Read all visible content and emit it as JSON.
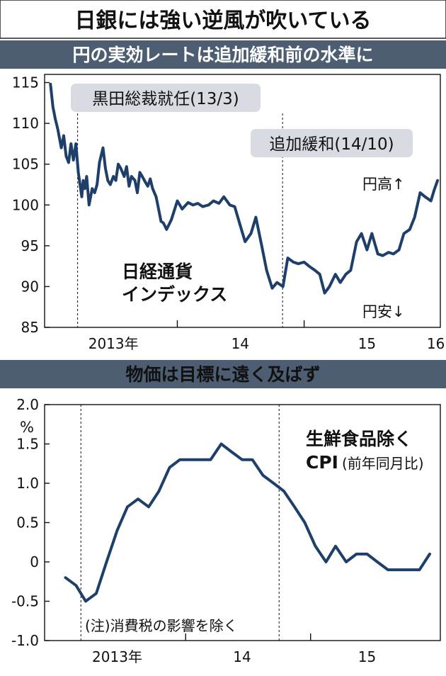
{
  "title": "日銀には強い逆風が吹いている",
  "colors": {
    "line": "#1f3f6b",
    "header_band": "#4d5e72",
    "callout": "#d8dce2",
    "ink": "#111111"
  },
  "chart_data": [
    {
      "type": "line",
      "section_title": "円の実効レートは追加緩和前の水準に",
      "series": [
        {
          "name": "日経通貨インデックス",
          "x": [
            "2013-01-01",
            "2013-01-08",
            "2013-01-15",
            "2013-01-22",
            "2013-02-01",
            "2013-02-08",
            "2013-02-15",
            "2013-02-22",
            "2013-03-01",
            "2013-03-08",
            "2013-03-15",
            "2013-03-22",
            "2013-04-01",
            "2013-04-05",
            "2013-04-10",
            "2013-04-15",
            "2013-04-22",
            "2013-05-01",
            "2013-05-08",
            "2013-05-15",
            "2013-05-22",
            "2013-06-01",
            "2013-06-08",
            "2013-06-15",
            "2013-06-22",
            "2013-07-01",
            "2013-07-08",
            "2013-07-15",
            "2013-07-22",
            "2013-08-01",
            "2013-08-08",
            "2013-08-15",
            "2013-08-22",
            "2013-09-01",
            "2013-09-08",
            "2013-09-15",
            "2013-09-22",
            "2013-10-01",
            "2013-10-08",
            "2013-10-15",
            "2013-10-22",
            "2013-11-01",
            "2013-11-08",
            "2013-11-15",
            "2013-11-22",
            "2013-12-01",
            "2013-12-15",
            "2014-01-01",
            "2014-01-15",
            "2014-02-01",
            "2014-02-15",
            "2014-03-01",
            "2014-03-15",
            "2014-04-01",
            "2014-04-15",
            "2014-05-01",
            "2014-05-15",
            "2014-06-01",
            "2014-06-15",
            "2014-07-01",
            "2014-07-15",
            "2014-08-01",
            "2014-08-15",
            "2014-09-01",
            "2014-09-15",
            "2014-10-01",
            "2014-10-15",
            "2014-11-01",
            "2014-11-15",
            "2014-12-01",
            "2014-12-15",
            "2015-01-01",
            "2015-01-15",
            "2015-02-01",
            "2015-02-15",
            "2015-03-01",
            "2015-03-15",
            "2015-04-01",
            "2015-04-15",
            "2015-05-01",
            "2015-05-15",
            "2015-06-01",
            "2015-06-15",
            "2015-07-01",
            "2015-07-15",
            "2015-08-01",
            "2015-08-15",
            "2015-09-01",
            "2015-09-15",
            "2015-10-01",
            "2015-10-15",
            "2015-11-01",
            "2015-11-15",
            "2015-12-01",
            "2015-12-15",
            "2016-01-01",
            "2016-01-10",
            "2016-01-20"
          ],
          "y": [
            114.8,
            112.0,
            110.5,
            109.3,
            107.0,
            108.5,
            106.0,
            105.2,
            107.5,
            105.5,
            107.5,
            104.0,
            101.0,
            103.0,
            102.0,
            103.5,
            100.0,
            102.0,
            101.5,
            102.5,
            105.2,
            107.0,
            104.5,
            103.0,
            102.5,
            103.5,
            103.0,
            105.0,
            104.5,
            103.5,
            104.7,
            102.3,
            103.5,
            103.0,
            101.5,
            104.0,
            103.5,
            102.8,
            102.3,
            103.2,
            102.0,
            101.0,
            99.5,
            98.0,
            97.8,
            97.0,
            98.2,
            100.5,
            99.5,
            100.3,
            100.0,
            100.2,
            99.8,
            100.0,
            100.5,
            100.2,
            101.0,
            100.0,
            99.8,
            97.5,
            95.5,
            96.5,
            98.5,
            95.0,
            92.0,
            89.8,
            90.5,
            90.0,
            93.5,
            93.0,
            92.8,
            93.0,
            92.5,
            92.0,
            91.5,
            89.2,
            90.0,
            91.5,
            90.5,
            91.5,
            92.0,
            95.5,
            96.5,
            94.5,
            96.5,
            94.0,
            93.8,
            94.2,
            94.0,
            94.5,
            96.5,
            97.0,
            98.5,
            101.5,
            101.0,
            100.5,
            101.8,
            103.0
          ]
        }
      ],
      "ylim": [
        85,
        116
      ],
      "yticks": [
        "115",
        "110",
        "105",
        "100",
        "95",
        "90",
        "85"
      ],
      "xlim": [
        "2012-12-15",
        "2016-01-28"
      ],
      "xtick_labels": [
        {
          "at": "2013-07-01",
          "label": "2013年"
        },
        {
          "at": "2014-07-01",
          "label": "14"
        },
        {
          "at": "2015-07-01",
          "label": "15"
        },
        {
          "at": "2016-01-15",
          "label": "16"
        }
      ],
      "year_ticks": [
        "2014-01-01",
        "2015-01-01"
      ],
      "events": [
        {
          "at": "2013-03-20",
          "label": "黒田総裁就任(13/3)"
        },
        {
          "at": "2014-10-31",
          "label": "追加緩和(14/10)"
        }
      ],
      "series_label_lines": [
        "日経通貨",
        "インデックス"
      ],
      "annotation_top": "円高↑",
      "annotation_bottom": "円安↓"
    },
    {
      "type": "line",
      "section_title": "物価は目標に遠く及ばず",
      "unit": "%",
      "series": [
        {
          "name": "生鮮食品除くCPI(前年同月比)",
          "x": [
            "2013-01",
            "2013-02",
            "2013-03",
            "2013-04",
            "2013-05",
            "2013-06",
            "2013-07",
            "2013-08",
            "2013-09",
            "2013-10",
            "2013-11",
            "2013-12",
            "2014-01",
            "2014-02",
            "2014-03",
            "2014-04",
            "2014-05",
            "2014-06",
            "2014-07",
            "2014-08",
            "2014-09",
            "2014-10",
            "2014-11",
            "2014-12",
            "2015-01",
            "2015-02",
            "2015-03",
            "2015-04",
            "2015-05",
            "2015-06",
            "2015-07",
            "2015-08",
            "2015-09",
            "2015-10",
            "2015-11",
            "2015-12"
          ],
          "y": [
            -0.2,
            -0.3,
            -0.5,
            -0.4,
            0.0,
            0.4,
            0.7,
            0.8,
            0.7,
            0.9,
            1.2,
            1.3,
            1.3,
            1.3,
            1.3,
            1.5,
            1.4,
            1.3,
            1.3,
            1.1,
            1.0,
            0.9,
            0.7,
            0.5,
            0.2,
            0.0,
            0.2,
            0.0,
            0.1,
            0.1,
            0.0,
            -0.1,
            -0.1,
            -0.1,
            -0.1,
            0.1
          ]
        }
      ],
      "ylim": [
        -1.0,
        2.0
      ],
      "yticks": [
        "2.0",
        "1.5",
        "1.0",
        "0.5",
        "0",
        "-0.5",
        "-1.0"
      ],
      "xlim": [
        "2012-11-15",
        "2016-01-15"
      ],
      "xtick_labels": [
        {
          "at": "2013-06-15",
          "label": "2013年"
        },
        {
          "at": "2014-06-15",
          "label": "14"
        },
        {
          "at": "2015-06-15",
          "label": "15"
        }
      ],
      "year_ticks": [
        "2014-01-01",
        "2015-01-01"
      ],
      "events": [
        {
          "at": "2013-03-01"
        },
        {
          "at": "2014-10-01"
        }
      ],
      "series_label_lines": [
        "生鮮食品除く",
        "CPI",
        "(前年同月比)"
      ],
      "note": "(注)消費税の影響を除く"
    }
  ]
}
